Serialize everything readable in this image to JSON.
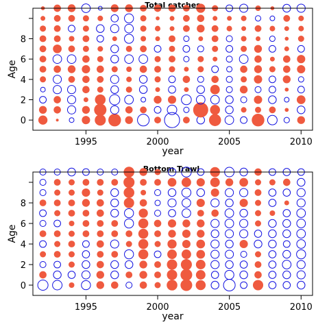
{
  "colors": {
    "positive": "#ef5a3f",
    "negative": "#1010e0",
    "frame": "#000000"
  },
  "chart_data": [
    {
      "type": "bubble",
      "title": "Total catches",
      "xlabel": "year",
      "ylabel": "Age",
      "xlim": [
        1991.3,
        2010.8
      ],
      "ylim": [
        -1,
        11
      ],
      "x_ticks": [
        1995,
        2000,
        2005,
        2010
      ],
      "y_ticks": [
        0,
        2,
        4,
        6,
        8
      ],
      "years": [
        1992,
        1993,
        1994,
        1995,
        1996,
        1997,
        1998,
        1999,
        2000,
        2001,
        2002,
        2003,
        2004,
        2005,
        2006,
        2007,
        2008,
        2009,
        2010
      ],
      "ages": [
        0,
        1,
        2,
        3,
        4,
        5,
        6,
        7,
        8,
        9,
        10,
        11
      ],
      "residuals": [
        [
          1.1,
          0.1,
          -0.3,
          0.9,
          1.6,
          2.1,
          0.8,
          -1.8,
          0.6,
          -3.0,
          0.6,
          -0.8,
          1.9,
          -1.0,
          -0.6,
          2.1,
          -1.2,
          -0.4,
          0.8
        ],
        [
          0.8,
          0.7,
          -0.9,
          0.8,
          2.0,
          -0.9,
          0.7,
          0.6,
          -0.6,
          -1.2,
          -0.4,
          3.0,
          1.3,
          -0.8,
          0.4,
          0.5,
          0.6,
          0.2,
          -0.8
        ],
        [
          -0.6,
          0.7,
          -0.9,
          0.3,
          1.5,
          -1.4,
          -1.0,
          -0.3,
          0.8,
          0.9,
          -1.3,
          -1.0,
          -1.0,
          -0.8,
          -0.5,
          0.9,
          -0.8,
          -0.3,
          1.0
        ],
        [
          -0.3,
          -0.9,
          -0.9,
          0.7,
          0.5,
          -0.8,
          0.5,
          -0.8,
          0.3,
          -0.7,
          0.3,
          -0.8,
          1.2,
          -0.5,
          0.8,
          -0.5,
          -0.6,
          0.2,
          -0.6
        ],
        [
          0.5,
          -0.9,
          0.6,
          0.7,
          0.6,
          -0.9,
          0.4,
          -0.8,
          0.5,
          -0.6,
          0.7,
          -0.5,
          0.7,
          -0.5,
          0.5,
          0.9,
          -0.6,
          0.8,
          -0.4
        ],
        [
          0.6,
          0.7,
          0.8,
          0.9,
          0.7,
          0.5,
          0.4,
          0.7,
          0.6,
          0.5,
          0.3,
          0.5,
          -0.6,
          -0.4,
          0.7,
          0.8,
          0.5,
          0.7,
          0.9
        ],
        [
          0.6,
          -1.0,
          -1.0,
          0.7,
          0.5,
          -0.8,
          -1.0,
          -1.0,
          0.5,
          0.6,
          -0.4,
          0.5,
          0.3,
          -0.5,
          -1.0,
          0.7,
          0.3,
          0.7,
          0.9
        ],
        [
          0.6,
          1.0,
          0.6,
          0.5,
          0.4,
          -0.8,
          0.5,
          0.6,
          -0.6,
          0.5,
          -0.6,
          -0.5,
          0.5,
          -0.6,
          0.5,
          0.8,
          -0.6,
          0.3,
          -0.6
        ],
        [
          0.6,
          0.6,
          0.4,
          0.6,
          -0.6,
          0.3,
          -1.1,
          0.4,
          0.3,
          0.6,
          -0.4,
          0.3,
          0.6,
          -0.5,
          0.4,
          0.3,
          -0.4,
          0.2,
          0.5
        ],
        [
          0.5,
          0.6,
          -0.6,
          0.5,
          -0.8,
          -0.9,
          -1.0,
          0.5,
          0.4,
          0.3,
          0.6,
          0.8,
          0.6,
          0.4,
          0.3,
          0.6,
          0.4,
          0.3,
          0.4
        ],
        [
          0.3,
          0.6,
          0.6,
          0.5,
          0.4,
          -0.7,
          -1.1,
          0.5,
          0.2,
          0.3,
          0.6,
          0.7,
          0.3,
          0.3,
          0.4,
          -0.4,
          -0.3,
          0.6,
          0.4
        ],
        [
          0.2,
          0.7,
          0.8,
          -1.0,
          -0.2,
          0.8,
          0.8,
          0.6,
          0.7,
          0.7,
          0.6,
          1.1,
          0.5,
          -0.6,
          -0.9,
          0.4,
          0.2,
          -0.8,
          -0.9
        ]
      ]
    },
    {
      "type": "bubble",
      "title": "Bottom Trawl",
      "xlabel": "year",
      "ylabel": "Age",
      "xlim": [
        1991.3,
        2010.8
      ],
      "ylim": [
        -1,
        11
      ],
      "x_ticks": [
        1995,
        2000,
        2005,
        2010
      ],
      "y_ticks": [
        0,
        2,
        4,
        6,
        8
      ],
      "years": [
        1992,
        1993,
        1994,
        1995,
        1996,
        1997,
        1998,
        1999,
        2000,
        2001,
        2002,
        2003,
        2004,
        2005,
        2006,
        2007,
        2008,
        2009,
        2010
      ],
      "ages": [
        0,
        1,
        2,
        3,
        4,
        5,
        6,
        7,
        8,
        9,
        10,
        11
      ],
      "residuals": [
        [
          -1.4,
          -1.2,
          0.4,
          -1.1,
          0.8,
          0.7,
          -0.5,
          0.7,
          0.5,
          1.5,
          1.8,
          1.3,
          -0.8,
          -1.8,
          -0.6,
          1.4,
          -0.7,
          -0.7,
          -0.8
        ],
        [
          0.7,
          -0.8,
          -0.7,
          -0.9,
          0.8,
          -0.8,
          0.6,
          0.8,
          0.6,
          1.4,
          1.8,
          1.2,
          -0.7,
          -1.1,
          -0.8,
          0.7,
          -0.7,
          -0.8,
          -0.9
        ],
        [
          -0.5,
          -0.6,
          0.5,
          -0.8,
          0.7,
          -0.8,
          -0.8,
          0.8,
          0.6,
          1.4,
          1.6,
          1.2,
          -0.9,
          -0.8,
          -0.7,
          0.6,
          -0.7,
          -1.0,
          -0.9
        ],
        [
          0.5,
          0.6,
          0.5,
          -0.7,
          0.6,
          0.6,
          -1.1,
          1.3,
          -0.6,
          1.2,
          1.2,
          1.0,
          -0.9,
          -0.9,
          -0.5,
          0.5,
          -0.7,
          -0.8,
          -1.1
        ],
        [
          -0.6,
          0.5,
          0.6,
          -0.6,
          0.7,
          -0.9,
          0.5,
          1.3,
          0.5,
          1.1,
          0.9,
          1.0,
          -0.9,
          -0.8,
          0.9,
          -0.8,
          -0.8,
          -0.6,
          -1.0
        ],
        [
          0.6,
          0.6,
          0.5,
          0.6,
          0.6,
          0.6,
          0.6,
          1.3,
          0.6,
          0.8,
          0.9,
          0.8,
          -0.8,
          -0.9,
          -0.9,
          -0.7,
          -0.8,
          -0.8,
          -1.0
        ],
        [
          -0.5,
          -0.6,
          0.4,
          0.6,
          0.6,
          0.6,
          -1.1,
          1.3,
          0.7,
          0.9,
          0.8,
          0.8,
          -0.9,
          -1.0,
          -0.9,
          0.5,
          -0.8,
          -0.8,
          -1.0
        ],
        [
          -0.6,
          0.5,
          0.6,
          0.6,
          0.7,
          -0.8,
          -1.1,
          1.1,
          -0.5,
          -0.7,
          -1.0,
          0.6,
          0.7,
          -1.0,
          -0.8,
          0.5,
          0.4,
          -0.7,
          -1.0
        ],
        [
          0.6,
          0.6,
          0.6,
          0.8,
          0.7,
          -0.8,
          1.4,
          0.7,
          -0.4,
          -0.9,
          -1.0,
          0.9,
          -0.9,
          -0.8,
          0.9,
          0.5,
          -0.7,
          0.3,
          -0.9
        ],
        [
          -0.5,
          0.5,
          0.5,
          0.9,
          0.5,
          -0.8,
          1.5,
          0.4,
          -0.5,
          -0.8,
          -1.1,
          -0.8,
          0.9,
          -0.9,
          -0.9,
          0.6,
          -0.7,
          -0.7,
          -0.9
        ],
        [
          -0.5,
          0.6,
          0.5,
          0.6,
          0.6,
          0.6,
          1.6,
          0.6,
          0.6,
          1.0,
          1.2,
          0.9,
          1.2,
          0.8,
          1.0,
          0.5,
          0.5,
          0.7,
          -0.8
        ],
        [
          -0.5,
          -0.5,
          -0.8,
          -0.6,
          -0.5,
          -0.5,
          1.5,
          0.8,
          0.5,
          -0.8,
          -1.3,
          -0.6,
          1.3,
          -1.2,
          -0.8,
          0.7,
          -0.6,
          -0.7,
          -0.6
        ]
      ]
    }
  ]
}
